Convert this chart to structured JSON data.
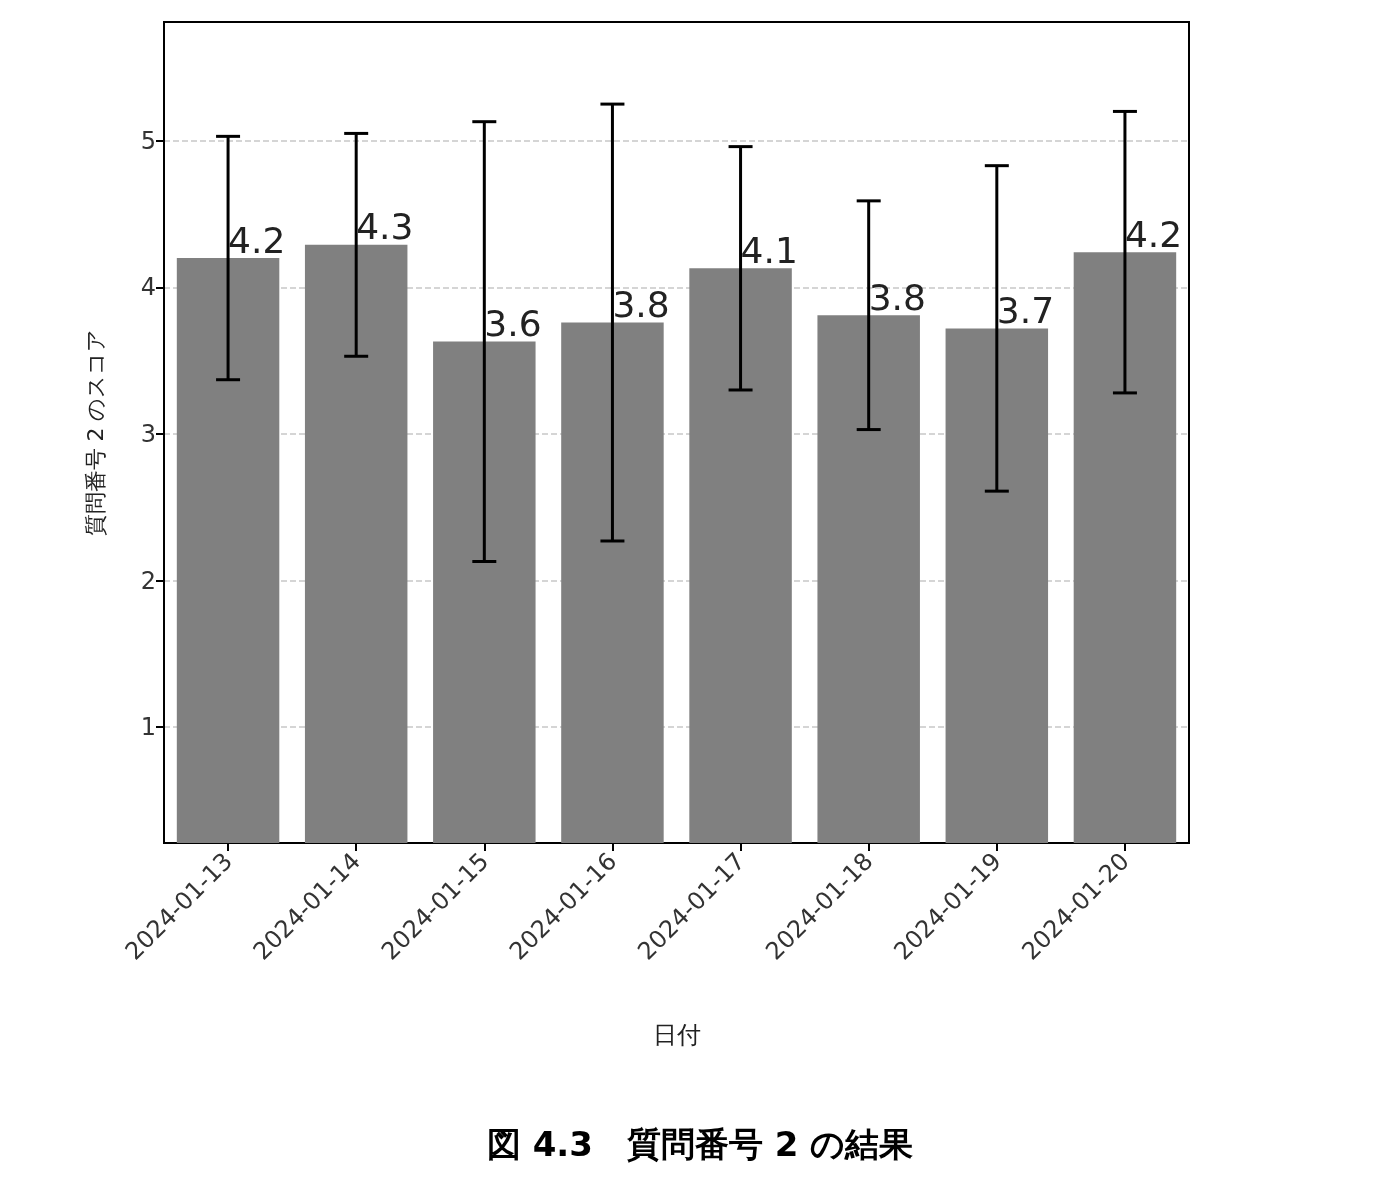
{
  "chart_data": {
    "type": "bar",
    "xlabel": "日付",
    "ylabel": "質問番号 2 のスコア",
    "annotations": [
      "図 4.3　質問番号 2 の結果"
    ],
    "categories": [
      "2024-01-13",
      "2024-01-14",
      "2024-01-15",
      "2024-01-16",
      "2024-01-17",
      "2024-01-18",
      "2024-01-19",
      "2024-01-20"
    ],
    "values": [
      4.2,
      4.29,
      3.63,
      3.76,
      4.13,
      3.81,
      3.72,
      4.24
    ],
    "errors": [
      0.83,
      0.76,
      1.5,
      1.49,
      0.83,
      0.78,
      1.11,
      0.96
    ],
    "value_labels": [
      "4.2",
      "4.3",
      "3.6",
      "3.8",
      "4.1",
      "3.8",
      "3.7",
      "4.2"
    ],
    "color": "#808080",
    "ylim": [
      0.21,
      5.81
    ],
    "yticks": [
      1,
      2,
      3,
      4,
      5
    ],
    "grid": "y"
  }
}
